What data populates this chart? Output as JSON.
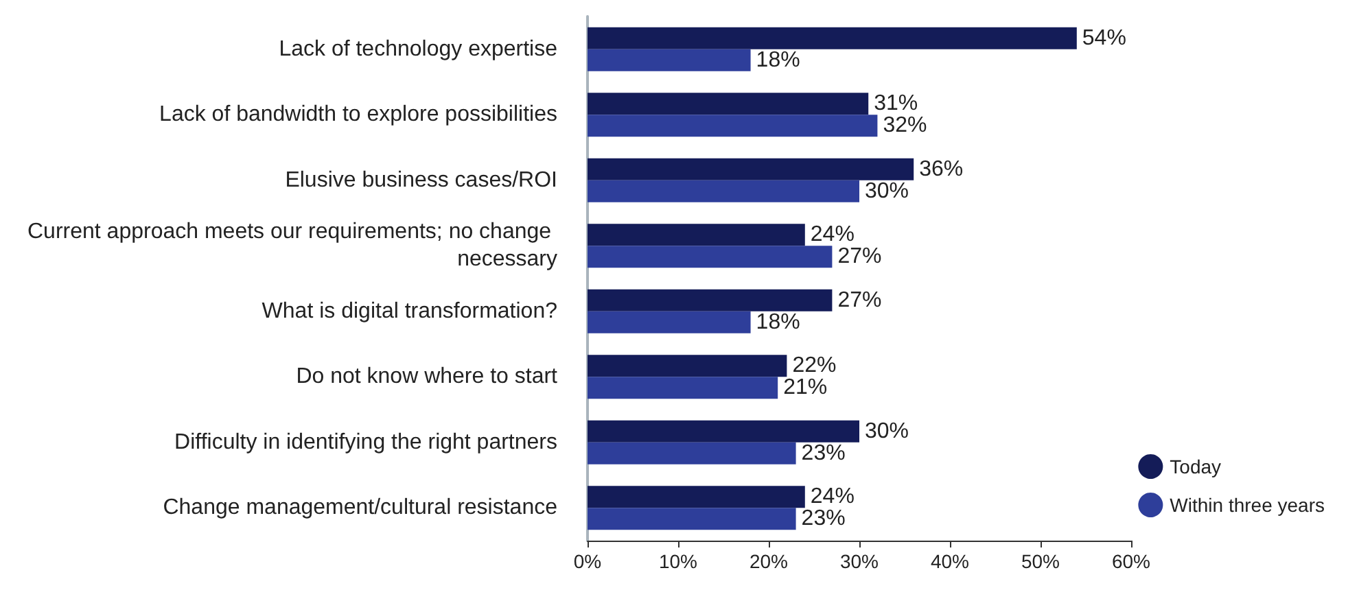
{
  "chart_data": {
    "type": "bar",
    "orientation": "horizontal",
    "categories": [
      "Lack of technology expertise",
      "Lack of bandwidth to explore possibilities",
      "Elusive business cases/ROI",
      "Current approach meets our requirements; no change necessary",
      "What is digital transformation?",
      "Do not know where to start",
      "Difficulty in identifying the right partners",
      "Change management/cultural resistance"
    ],
    "series": [
      {
        "name": "Today",
        "color": "#141c58",
        "values": [
          54,
          31,
          36,
          24,
          27,
          22,
          30,
          24
        ],
        "value_labels": [
          "54%",
          "31%",
          "36%",
          "24%",
          "27%",
          "22%",
          "30%",
          "24%"
        ]
      },
      {
        "name": "Within three years",
        "color": "#2e3e9a",
        "values": [
          18,
          32,
          30,
          27,
          18,
          21,
          23,
          23
        ],
        "value_labels": [
          "18%",
          "32%",
          "30%",
          "27%",
          "18%",
          "21%",
          "23%",
          "23%"
        ]
      }
    ],
    "xlim": [
      0,
      60
    ],
    "xticks": [
      {
        "value": 0,
        "label": "0%"
      },
      {
        "value": 10,
        "label": "10%"
      },
      {
        "value": 20,
        "label": "20%"
      },
      {
        "value": 30,
        "label": "30%"
      },
      {
        "value": 40,
        "label": "40%"
      },
      {
        "value": 50,
        "label": "50%"
      },
      {
        "value": 60,
        "label": "60%"
      }
    ],
    "grid": false,
    "legend": "right"
  }
}
